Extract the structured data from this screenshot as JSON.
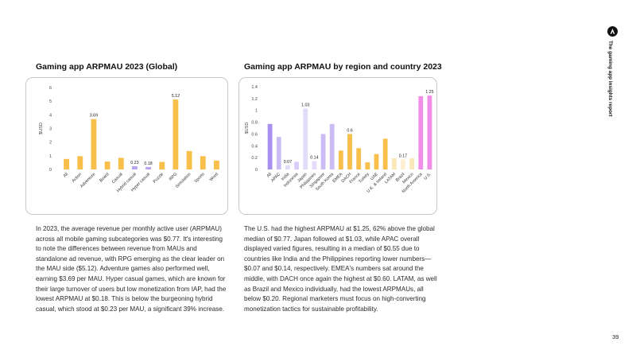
{
  "page": {
    "left_heading": "Gaming app ARPMAU 2023 (Global)",
    "right_heading": "Gaming app ARPMAU by region and country 2023",
    "left_paragraph": "In 2023, the average revenue per monthly active user (ARPMAU) across all mobile gaming subcategories was $0.77. It's interesting to note the differences between revenue from MAUs and standalone ad revenue, with RPG emerging as the clear leader on the MAU side ($5.12). Adventure games also performed well, earning $3.69 per MAU. Hyper casual games, which are known for their large turnover of users but low monetization from IAP, had the lowest ARPMAU at $0.18. This is below the burgeoning hybrid casual, which stood at $0.23 per MAU, a significant 39% increase.",
    "right_paragraph": "The U.S. had the highest ARPMAU at $1.25, 62% above the global median of $0.77. Japan followed at $1.03, while APAC overall displayed varied figures, resulting in a median of $0.55 due to countries like India and the Philippines reporting lower numbers—$0.07 and $0.14, respectively. EMEA's numbers sat around the middle, with DACH once again the highest at $0.60. LATAM, as well as Brazil and Mexico individually, had the lowest ARPMAUs, all below $0.20. Regional marketers must focus on high-converting monetization tactics for sustainable profitability.",
    "side_title": "The gaming app insights report",
    "side_icon": "brand-logo-icon",
    "page_number": "39"
  },
  "chart_data": [
    {
      "type": "bar",
      "title": "Gaming app ARPMAU 2023 (Global)",
      "ylabel": "$USD",
      "xlabel": "",
      "ylim": [
        0,
        6
      ],
      "yticks": [
        "0",
        "1",
        "2",
        "3",
        "4",
        "5",
        "6"
      ],
      "grid": false,
      "categories": [
        "All",
        "Action",
        "Adventure",
        "Board",
        "Casual",
        "Hybrid casual",
        "Hyper casual",
        "Puzzle",
        "RPG",
        "Simulation",
        "Sports",
        "Word"
      ],
      "values": [
        0.77,
        0.97,
        3.69,
        0.58,
        0.85,
        0.23,
        0.18,
        0.55,
        5.12,
        1.35,
        0.97,
        0.65
      ],
      "labels": [
        "",
        "",
        "3.69",
        "",
        "",
        "0.23",
        "0.18",
        "",
        "5.12",
        "",
        "",
        ""
      ],
      "colors": [
        "#f9bf4b",
        "#f9bf4b",
        "#f9bf4b",
        "#f9bf4b",
        "#f9bf4b",
        "#b9a3f2",
        "#b9a3f2",
        "#f9bf4b",
        "#f9bf4b",
        "#f9bf4b",
        "#f9bf4b",
        "#f9bf4b"
      ]
    },
    {
      "type": "bar",
      "title": "Gaming app ARPMAU by region and country 2023",
      "ylabel": "$USD",
      "xlabel": "",
      "ylim": [
        0,
        1.4
      ],
      "yticks": [
        "0",
        "0.2",
        "0.4",
        "0.6",
        "0.8",
        "1",
        "1.2",
        "1.4"
      ],
      "grid": false,
      "categories": [
        "All",
        "APAC",
        "India",
        "Indonesia",
        "Japan",
        "Philippines",
        "Singapore",
        "South Korea",
        "EMEA",
        "DACH",
        "France",
        "Turkey",
        "UAE",
        "U.K. & Ireland",
        "LATAM",
        "Brazil",
        "Mexico",
        "North America",
        "U.S."
      ],
      "values": [
        0.77,
        0.55,
        0.07,
        0.13,
        1.03,
        0.14,
        0.6,
        0.77,
        0.32,
        0.6,
        0.36,
        0.12,
        0.26,
        0.52,
        0.19,
        0.17,
        0.19,
        1.24,
        1.25
      ],
      "labels": [
        "",
        "",
        "0.07",
        "",
        "1.03",
        "0.14",
        "",
        "",
        "",
        "0.6",
        "",
        "",
        "",
        "",
        "",
        "0.17",
        "",
        "",
        "1.25"
      ],
      "colors": [
        "#a98ff0",
        "#cbbcf6",
        "#e4dbfb",
        "#d8cdf9",
        "#e4dbfb",
        "#e4dbfb",
        "#cbbcf6",
        "#cbbcf6",
        "#f9bf4b",
        "#f9bf4b",
        "#f9bf4b",
        "#f9bf4b",
        "#f9bf4b",
        "#f9bf4b",
        "#fce7b8",
        "#fdf0d2",
        "#fce7b8",
        "#f08ee8",
        "#f08ee8"
      ]
    }
  ]
}
